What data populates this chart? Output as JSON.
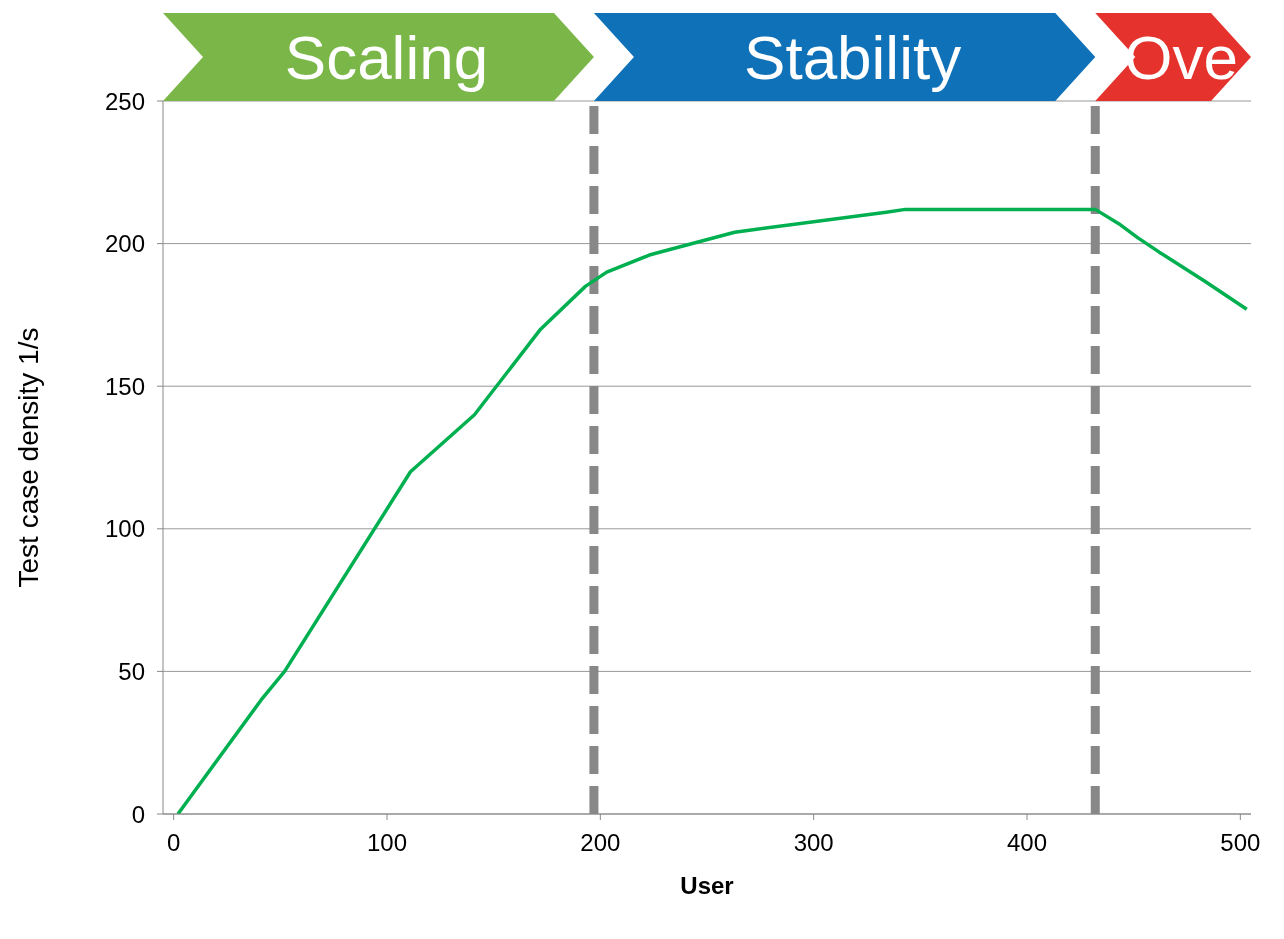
{
  "chart_data": {
    "type": "line",
    "xlabel": "User",
    "ylabel": "Test case density 1/s",
    "x": [
      2,
      41,
      52,
      111,
      141,
      172,
      193,
      203,
      223,
      233,
      263,
      334,
      343,
      432,
      443,
      452,
      462,
      483,
      503
    ],
    "series": [
      {
        "color": "#00b050",
        "values": [
          0,
          40,
          50,
          120,
          140,
          170,
          185,
          190,
          196,
          198,
          204,
          211,
          212,
          212,
          207,
          202,
          197,
          187,
          177
        ]
      }
    ],
    "xlim": [
      -5,
      505
    ],
    "xticks": [
      0,
      100,
      200,
      300,
      400,
      500
    ],
    "ylim": [
      0,
      250
    ],
    "yticks": [
      0,
      50,
      100,
      150,
      200,
      250
    ],
    "grid": "y",
    "marker": "none",
    "ref_lines": [
      {
        "axis": "x",
        "value": 197,
        "color": "#888888",
        "line_style": "dashed"
      },
      {
        "axis": "x",
        "value": 432,
        "color": "#888888",
        "line_style": "dashed"
      }
    ],
    "annotations": [
      "Scaling",
      "Stability",
      "Ove"
    ]
  }
}
